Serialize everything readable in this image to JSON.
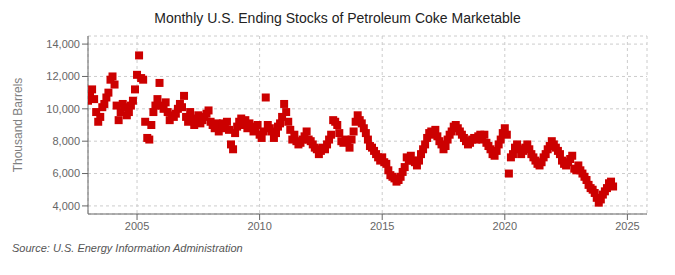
{
  "chart_data": {
    "type": "scatter",
    "title": "Monthly U.S. Ending Stocks of Petroleum Coke Marketable",
    "y_label": "Thousand Barrels",
    "annotations": [
      "Source: U.S. Energy Information Administration"
    ],
    "color": "#cc0000",
    "marker": "square",
    "grid": true,
    "xlim": [
      2003.0,
      2025.8
    ],
    "xticks": [
      2005,
      2010,
      2015,
      2020,
      2025
    ],
    "ylim": [
      3500,
      14500
    ],
    "yticks": [
      {
        "value": 4000,
        "label": "4,000"
      },
      {
        "value": 6000,
        "label": "6,000"
      },
      {
        "value": 8000,
        "label": "8,000"
      },
      {
        "value": 10000,
        "label": "10,000"
      },
      {
        "value": 12000,
        "label": "12,000"
      },
      {
        "value": 14000,
        "label": "14,000"
      }
    ],
    "x": [
      2003.0,
      2003.083,
      2003.167,
      2003.25,
      2003.333,
      2003.417,
      2003.5,
      2003.583,
      2003.667,
      2003.75,
      2003.833,
      2003.917,
      2004.0,
      2004.083,
      2004.167,
      2004.25,
      2004.333,
      2004.417,
      2004.5,
      2004.583,
      2004.667,
      2004.75,
      2004.833,
      2004.917,
      2005.0,
      2005.083,
      2005.167,
      2005.25,
      2005.333,
      2005.417,
      2005.5,
      2005.583,
      2005.667,
      2005.75,
      2005.833,
      2005.917,
      2006.0,
      2006.083,
      2006.167,
      2006.25,
      2006.333,
      2006.417,
      2006.5,
      2006.583,
      2006.667,
      2006.75,
      2006.833,
      2006.917,
      2007.0,
      2007.083,
      2007.167,
      2007.25,
      2007.333,
      2007.417,
      2007.5,
      2007.583,
      2007.667,
      2007.75,
      2007.833,
      2007.917,
      2008.0,
      2008.083,
      2008.167,
      2008.25,
      2008.333,
      2008.417,
      2008.5,
      2008.583,
      2008.667,
      2008.75,
      2008.833,
      2008.917,
      2009.0,
      2009.083,
      2009.167,
      2009.25,
      2009.333,
      2009.417,
      2009.5,
      2009.583,
      2009.667,
      2009.75,
      2009.833,
      2009.917,
      2010.0,
      2010.083,
      2010.167,
      2010.25,
      2010.333,
      2010.417,
      2010.5,
      2010.583,
      2010.667,
      2010.75,
      2010.833,
      2010.917,
      2011.0,
      2011.083,
      2011.167,
      2011.25,
      2011.333,
      2011.417,
      2011.5,
      2011.583,
      2011.667,
      2011.75,
      2011.833,
      2011.917,
      2012.0,
      2012.083,
      2012.167,
      2012.25,
      2012.333,
      2012.417,
      2012.5,
      2012.583,
      2012.667,
      2012.75,
      2012.833,
      2012.917,
      2013.0,
      2013.083,
      2013.167,
      2013.25,
      2013.333,
      2013.417,
      2013.5,
      2013.583,
      2013.667,
      2013.75,
      2013.833,
      2013.917,
      2014.0,
      2014.083,
      2014.167,
      2014.25,
      2014.333,
      2014.417,
      2014.5,
      2014.583,
      2014.667,
      2014.75,
      2014.833,
      2014.917,
      2015.0,
      2015.083,
      2015.167,
      2015.25,
      2015.333,
      2015.417,
      2015.5,
      2015.583,
      2015.667,
      2015.75,
      2015.833,
      2015.917,
      2016.0,
      2016.083,
      2016.167,
      2016.25,
      2016.333,
      2016.417,
      2016.5,
      2016.583,
      2016.667,
      2016.75,
      2016.833,
      2016.917,
      2017.0,
      2017.083,
      2017.167,
      2017.25,
      2017.333,
      2017.417,
      2017.5,
      2017.583,
      2017.667,
      2017.75,
      2017.833,
      2017.917,
      2018.0,
      2018.083,
      2018.167,
      2018.25,
      2018.333,
      2018.417,
      2018.5,
      2018.583,
      2018.667,
      2018.75,
      2018.833,
      2018.917,
      2019.0,
      2019.083,
      2019.167,
      2019.25,
      2019.333,
      2019.417,
      2019.5,
      2019.583,
      2019.667,
      2019.75,
      2019.833,
      2019.917,
      2020.0,
      2020.083,
      2020.167,
      2020.25,
      2020.333,
      2020.417,
      2020.5,
      2020.583,
      2020.667,
      2020.75,
      2020.833,
      2020.917,
      2021.0,
      2021.083,
      2021.167,
      2021.25,
      2021.333,
      2021.417,
      2021.5,
      2021.583,
      2021.667,
      2021.75,
      2021.833,
      2021.917,
      2022.0,
      2022.083,
      2022.167,
      2022.25,
      2022.333,
      2022.417,
      2022.5,
      2022.583,
      2022.667,
      2022.75,
      2022.833,
      2022.917,
      2023.0,
      2023.083,
      2023.167,
      2023.25,
      2023.333,
      2023.417,
      2023.5,
      2023.583,
      2023.667,
      2023.75,
      2023.833,
      2023.917,
      2024.0,
      2024.083,
      2024.167,
      2024.25,
      2024.333,
      2024.417
    ],
    "values": [
      10500,
      10800,
      11200,
      10600,
      9800,
      9200,
      9500,
      10100,
      10300,
      10700,
      11000,
      11800,
      12000,
      11500,
      10200,
      9300,
      9800,
      10300,
      10100,
      9600,
      9800,
      10200,
      10500,
      11200,
      12100,
      13300,
      11900,
      11800,
      9200,
      8200,
      8100,
      9000,
      9800,
      10200,
      10600,
      11600,
      10200,
      10000,
      10400,
      9800,
      9300,
      9600,
      9500,
      9700,
      10000,
      10300,
      10100,
      10800,
      9500,
      9200,
      9800,
      9400,
      9000,
      9300,
      9600,
      9100,
      9300,
      9500,
      9700,
      9900,
      9200,
      9000,
      8800,
      9100,
      8600,
      8900,
      9100,
      8800,
      9200,
      8700,
      7800,
      7500,
      8500,
      8900,
      9200,
      9400,
      9000,
      9300,
      8800,
      9100,
      8900,
      8600,
      8700,
      9000,
      8400,
      8200,
      8600,
      10700,
      9000,
      8800,
      8600,
      8200,
      8500,
      8900,
      9100,
      9500,
      10300,
      9800,
      9200,
      8700,
      8100,
      8400,
      8000,
      7800,
      7900,
      8100,
      8300,
      8600,
      8100,
      8000,
      7800,
      7600,
      7500,
      7200,
      7400,
      7600,
      7500,
      7800,
      8100,
      8400,
      9300,
      9200,
      9000,
      8500,
      8000,
      7900,
      8100,
      8000,
      7600,
      8100,
      8600,
      9200,
      9600,
      9300,
      9100,
      8800,
      8500,
      8100,
      7700,
      7600,
      7400,
      7200,
      7000,
      6800,
      7000,
      6700,
      6600,
      6200,
      5900,
      5800,
      5700,
      5500,
      5600,
      5800,
      6100,
      6400,
      7000,
      6800,
      7100,
      6800,
      6700,
      6500,
      6800,
      7200,
      7500,
      7800,
      8200,
      8500,
      8600,
      8400,
      8700,
      8300,
      8000,
      7800,
      7500,
      7700,
      8100,
      8400,
      8600,
      8900,
      9000,
      8800,
      8600,
      8400,
      8200,
      8000,
      7800,
      7900,
      8100,
      8200,
      8100,
      8300,
      8400,
      8100,
      8400,
      7900,
      7700,
      7500,
      7200,
      7100,
      7400,
      7800,
      8100,
      8500,
      8800,
      8400,
      6000,
      7000,
      7200,
      7600,
      7800,
      7500,
      7200,
      7400,
      7600,
      7800,
      7500,
      7200,
      7000,
      6800,
      6600,
      6500,
      6700,
      7000,
      7200,
      7500,
      7700,
      8000,
      7800,
      7600,
      7400,
      7200,
      6800,
      6600,
      6500,
      6700,
      6900,
      7100,
      6300,
      6200,
      6500,
      6200,
      6000,
      5800,
      5600,
      5300,
      5100,
      5000,
      4800,
      4500,
      4200,
      4400,
      4700,
      4900,
      5100,
      5400,
      5500,
      5200
    ]
  }
}
